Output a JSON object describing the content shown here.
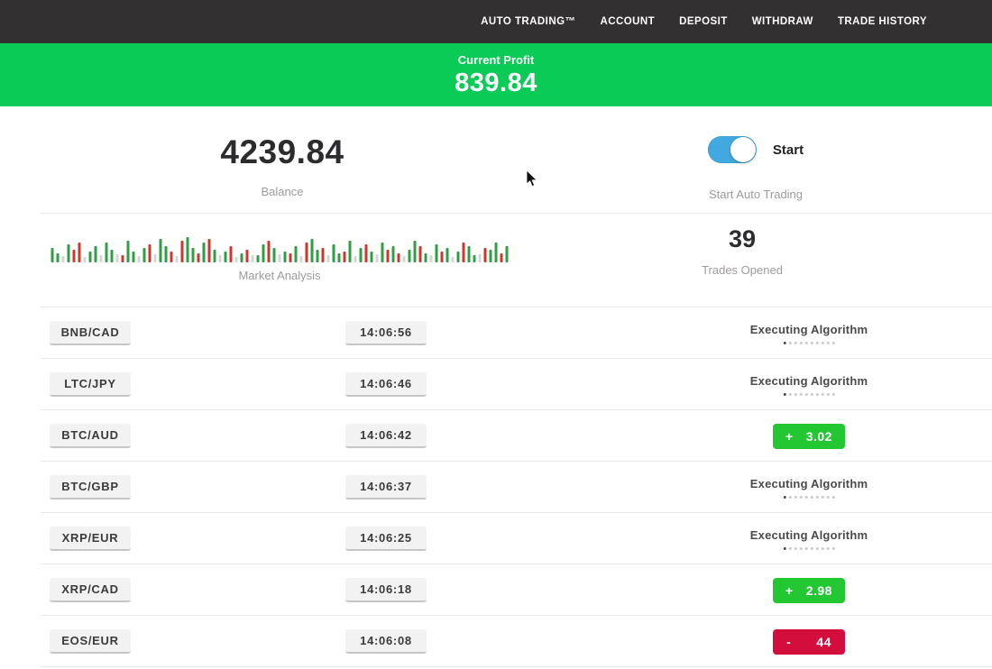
{
  "nav": {
    "items": [
      "AUTO TRADING™",
      "ACCOUNT",
      "DEPOSIT",
      "WITHDRAW",
      "TRADE HISTORY"
    ]
  },
  "banner": {
    "label": "Current Profit",
    "value": "839.84",
    "bg": "#0bcb57"
  },
  "balance": {
    "value": "4239.84",
    "label": "Balance"
  },
  "auto_trading": {
    "state": "on",
    "toggle_label": "Start",
    "label": "Start Auto Trading",
    "toggle_color": "#42a9e0"
  },
  "market": {
    "label": "Market Analysis",
    "bar_colors": {
      "g": "#2f9e44",
      "r": "#ce382c",
      "p": "#d2d7d2"
    },
    "bars": [
      "g16",
      "g10",
      "p7",
      "g20",
      "r14",
      "r22",
      "p6",
      "g12",
      "g18",
      "p8",
      "g22",
      "g14",
      "p9",
      "r8",
      "g24",
      "g12",
      "p7",
      "g16",
      "r20",
      "p9",
      "g26",
      "g18",
      "r12",
      "p7",
      "r24",
      "g28",
      "g16",
      "r10",
      "g22",
      "r26",
      "g14",
      "p8",
      "g12",
      "r18",
      "p6",
      "g10",
      "r14",
      "p8",
      "g8",
      "g20",
      "r24",
      "g16",
      "p9",
      "g12",
      "r10",
      "g18",
      "p7",
      "r22",
      "g26",
      "g14",
      "r16",
      "p8",
      "g20",
      "g10",
      "r12",
      "g24",
      "p7",
      "g16",
      "r20",
      "g12",
      "p9",
      "g22",
      "r14",
      "g18",
      "r10",
      "p7",
      "g14",
      "g24",
      "r18",
      "g10",
      "p8",
      "g20",
      "r12",
      "g16",
      "p6",
      "g12",
      "r22",
      "g18",
      "g8",
      "p9",
      "r16",
      "g14",
      "g22",
      "r10",
      "g18"
    ]
  },
  "trades_opened": {
    "value": "39",
    "label": "Trades Opened"
  },
  "status_labels": {
    "executing": "Executing Algorithm"
  },
  "badge_colors": {
    "profit": "#22c732",
    "loss": "#d30e3d"
  },
  "trades": [
    {
      "pair": "BNB/CAD",
      "time": "14:06:56",
      "status": "executing"
    },
    {
      "pair": "LTC/JPY",
      "time": "14:06:46",
      "status": "executing"
    },
    {
      "pair": "BTC/AUD",
      "time": "14:06:42",
      "status": "profit",
      "sign": "+",
      "amount": "3.02"
    },
    {
      "pair": "BTC/GBP",
      "time": "14:06:37",
      "status": "executing"
    },
    {
      "pair": "XRP/EUR",
      "time": "14:06:25",
      "status": "executing"
    },
    {
      "pair": "XRP/CAD",
      "time": "14:06:18",
      "status": "profit",
      "sign": "+",
      "amount": "2.98"
    },
    {
      "pair": "EOS/EUR",
      "time": "14:06:08",
      "status": "loss",
      "sign": "-",
      "amount": "44"
    }
  ]
}
